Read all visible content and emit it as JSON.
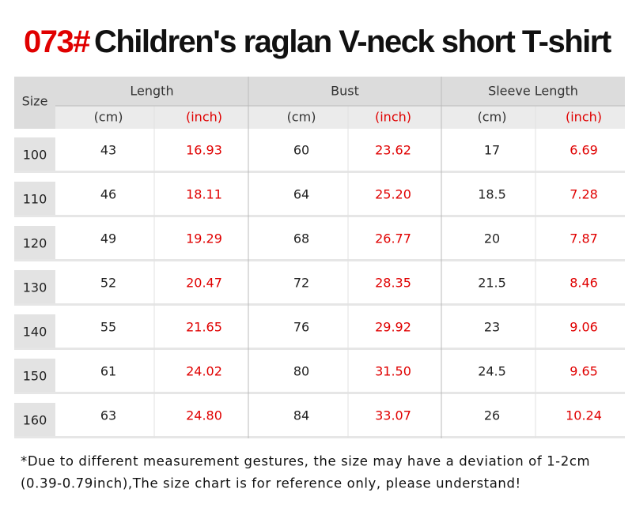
{
  "header": {
    "code": "073#",
    "title": "Children's raglan V-neck short T-shirt"
  },
  "table": {
    "size_label": "Size",
    "groups": [
      "Length",
      "Bust",
      "Sleeve Length"
    ],
    "units": [
      "(cm)",
      "(inch)",
      "(cm)",
      "(inch)",
      "(cm)",
      "(inch)"
    ],
    "rows": [
      [
        "100",
        "43",
        "16.93",
        "60",
        "23.62",
        "17",
        "6.69"
      ],
      [
        "110",
        "46",
        "18.11",
        "64",
        "25.20",
        "18.5",
        "7.28"
      ],
      [
        "120",
        "49",
        "19.29",
        "68",
        "26.77",
        "20",
        "7.87"
      ],
      [
        "130",
        "52",
        "20.47",
        "72",
        "28.35",
        "21.5",
        "8.46"
      ],
      [
        "140",
        "55",
        "21.65",
        "76",
        "29.92",
        "23",
        "9.06"
      ],
      [
        "150",
        "61",
        "24.02",
        "80",
        "31.50",
        "24.5",
        "9.65"
      ],
      [
        "160",
        "63",
        "24.80",
        "84",
        "33.07",
        "26",
        "10.24"
      ]
    ]
  },
  "footnote": [
    "*Due to different measurement gestures, the size may have a deviation of 1-2cm",
    "(0.39-0.79inch),The size chart is for reference only, please understand!"
  ]
}
